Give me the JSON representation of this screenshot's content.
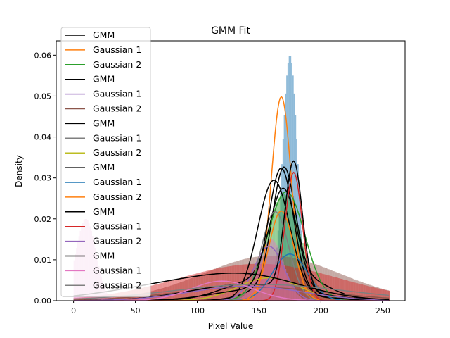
{
  "chart_data": {
    "type": "line",
    "title": "GMM Fit",
    "xlabel": "Pixel Value",
    "ylabel": "Density",
    "xlim": [
      -14,
      268
    ],
    "ylim": [
      0,
      0.0635
    ],
    "xticks": [
      0,
      50,
      100,
      150,
      200,
      250
    ],
    "yticks": [
      0.0,
      0.01,
      0.02,
      0.03,
      0.04,
      0.05,
      0.06
    ],
    "xtick_labels": [
      "0",
      "50",
      "100",
      "150",
      "200",
      "250"
    ],
    "ytick_labels": [
      "0.00",
      "0.01",
      "0.02",
      "0.03",
      "0.04",
      "0.05",
      "0.06"
    ],
    "legend_position": "upper-left",
    "histograms": [
      {
        "color": "#1f77b4",
        "center": 175,
        "sd": 6,
        "peak": 0.06
      },
      {
        "color": "#2ca02c",
        "center": 170,
        "sd": 14,
        "peak": 0.026
      },
      {
        "color": "#8c564b",
        "center": 160,
        "sd": 55,
        "peak": 0.011
      },
      {
        "color": "#d62728",
        "center": 150,
        "sd": 65,
        "peak": 0.009
      },
      {
        "color": "#e377c2",
        "center": 160,
        "sd": 10,
        "peak": 0.015
      },
      {
        "color": "#e377c2",
        "center": 10,
        "sd": 8,
        "peak": 0.02
      }
    ],
    "series": [
      {
        "name": "GMM",
        "color": "#000000",
        "components": [
          [
            0.6,
            170,
            9
          ],
          [
            0.4,
            178,
            25
          ]
        ]
      },
      {
        "name": "Gaussian 1",
        "color": "#ff7f0e",
        "components": [
          [
            1,
            168,
            8
          ]
        ]
      },
      {
        "name": "Gaussian 2",
        "color": "#2ca02c",
        "components": [
          [
            1,
            172,
            15
          ]
        ]
      },
      {
        "name": "GMM",
        "color": "#000000",
        "components": [
          [
            0.95,
            162,
            13
          ],
          [
            0.05,
            200,
            30
          ]
        ]
      },
      {
        "name": "Gaussian 1",
        "color": "#9467bd",
        "components": [
          [
            0.4,
            158,
            12
          ]
        ]
      },
      {
        "name": "Gaussian 2",
        "color": "#8c564b",
        "components": [
          [
            0.5,
            145,
            60
          ]
        ]
      },
      {
        "name": "GMM",
        "color": "#000000",
        "components": [
          [
            0.65,
            170,
            11
          ],
          [
            0.35,
            150,
            28
          ]
        ]
      },
      {
        "name": "Gaussian 1",
        "color": "#7f7f7f",
        "components": [
          [
            0.6,
            163,
            11
          ]
        ]
      },
      {
        "name": "Gaussian 2",
        "color": "#bcbd22",
        "components": [
          [
            0.35,
            158,
            25
          ]
        ]
      },
      {
        "name": "GMM",
        "color": "#000000",
        "components": [
          [
            0.75,
            168,
            10
          ],
          [
            0.25,
            150,
            35
          ]
        ]
      },
      {
        "name": "Gaussian 1",
        "color": "#1f77b4",
        "components": [
          [
            0.4,
            175,
            14
          ]
        ]
      },
      {
        "name": "Gaussian 2",
        "color": "#ff7f0e",
        "components": [
          [
            0.55,
            168,
            10
          ]
        ]
      },
      {
        "name": "GMM",
        "color": "#000000",
        "components": [
          [
            0.55,
            178,
            7
          ],
          [
            0.45,
            140,
            45
          ]
        ]
      },
      {
        "name": "Gaussian 1",
        "color": "#d62728",
        "components": [
          [
            0.55,
            178,
            7
          ]
        ]
      },
      {
        "name": "Gaussian 2",
        "color": "#9467bd",
        "components": [
          [
            0.4,
            140,
            45
          ]
        ]
      },
      {
        "name": "GMM",
        "color": "#000000",
        "components": [
          [
            0.3,
            150,
            40
          ],
          [
            0.7,
            100,
            60
          ]
        ]
      },
      {
        "name": "Gaussian 1",
        "color": "#e377c2",
        "components": [
          [
            0.3,
            120,
            25
          ]
        ]
      },
      {
        "name": "Gaussian 2",
        "color": "#7f7f7f",
        "components": [
          [
            0.7,
            150,
            70
          ]
        ]
      }
    ]
  }
}
